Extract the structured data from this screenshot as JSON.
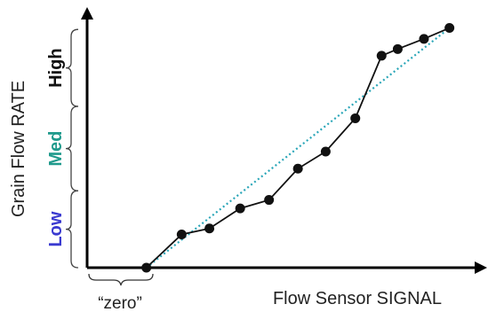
{
  "chart_data": {
    "type": "line",
    "xlabel": "Flow Sensor SIGNAL",
    "ylabel": "Grain Flow RATE",
    "x_annotation": "“zero”",
    "xlim": [
      0,
      100
    ],
    "ylim": [
      0,
      100
    ],
    "bands": [
      {
        "label": "Low",
        "color": "#3a3ad0",
        "range": [
          0,
          31
        ]
      },
      {
        "label": "Med",
        "color": "#1f9a8c",
        "range": [
          31,
          65
        ]
      },
      {
        "label": "High",
        "color": "#111111",
        "range": [
          65,
          96
        ]
      }
    ],
    "series": [
      {
        "style": "measured",
        "color": "#111111",
        "x": [
          15.8,
          25.2,
          32.6,
          40.8,
          48.5,
          56.2,
          63.6,
          71.5,
          78.5,
          82.8,
          89.8,
          96.6
        ],
        "y": [
          0,
          13.4,
          15.8,
          23.9,
          27.3,
          39.9,
          46.8,
          60.2,
          85.4,
          88.1,
          92.2,
          96.6
        ]
      },
      {
        "style": "ideal",
        "color": "#2aa6b8",
        "x": [
          15.8,
          96.6
        ],
        "y": [
          0,
          96.6
        ]
      }
    ]
  }
}
